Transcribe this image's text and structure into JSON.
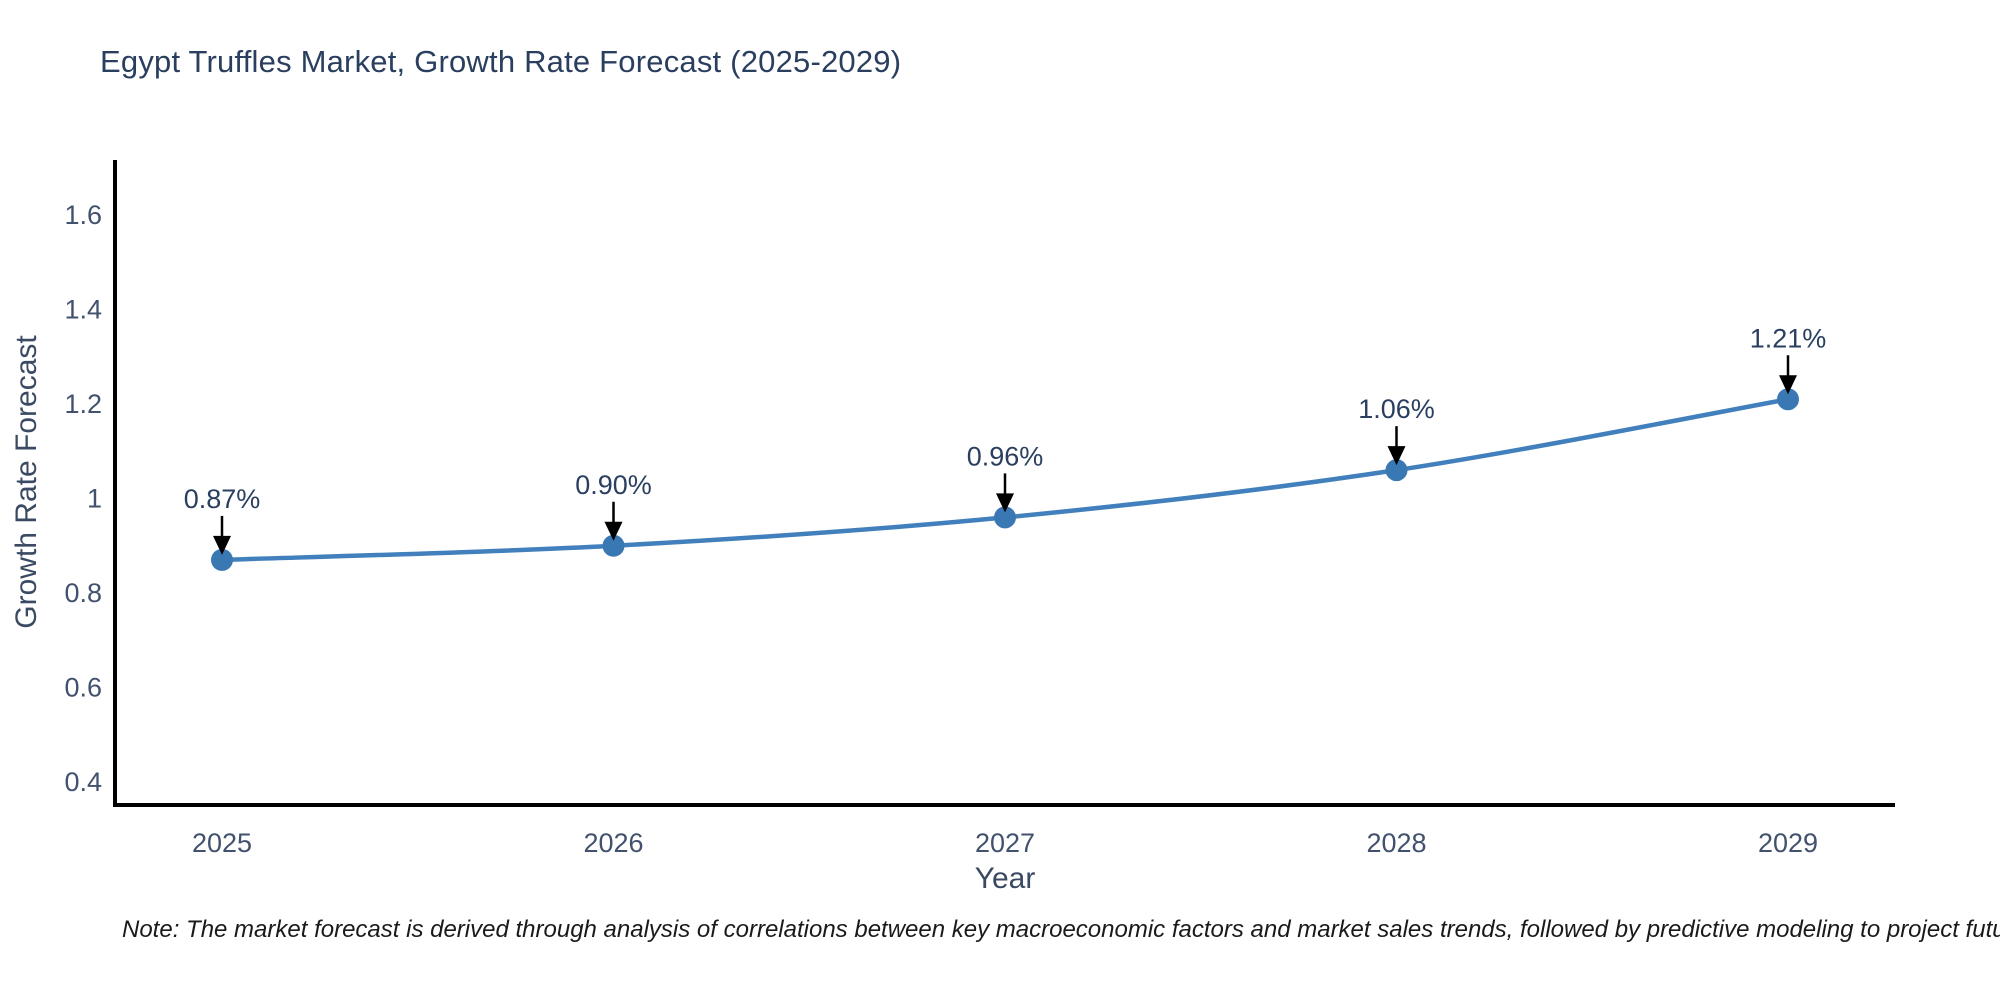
{
  "title": "Egypt Truffles Market, Growth Rate Forecast (2025-2029)",
  "note": "Note: The market forecast is derived through analysis of correlations between key macroeconomic factors and market sales trends, followed by predictive modeling to project future sales",
  "chart_data": {
    "type": "line",
    "x": [
      "2025",
      "2026",
      "2027",
      "2028",
      "2029"
    ],
    "series": [
      {
        "name": "Growth Rate Forecast",
        "values": [
          0.87,
          0.9,
          0.96,
          1.06,
          1.21
        ],
        "point_labels": [
          "0.87%",
          "0.90%",
          "0.96%",
          "1.06%",
          "1.21%"
        ]
      }
    ],
    "title": "Egypt Truffles Market, Growth Rate Forecast (2025-2029)",
    "xlabel": "Year",
    "ylabel": "Growth Rate Forecast",
    "ylim": [
      0.35,
      1.72
    ],
    "yticks": [
      {
        "v": 0.4,
        "label": "0.4"
      },
      {
        "v": 0.6,
        "label": "0.6"
      },
      {
        "v": 0.8,
        "label": "0.8"
      },
      {
        "v": 1.0,
        "label": "1"
      },
      {
        "v": 1.2,
        "label": "1.2"
      },
      {
        "v": 1.4,
        "label": "1.4"
      },
      {
        "v": 1.6,
        "label": "1.6"
      }
    ],
    "grid": false,
    "legend": "none",
    "colors": {
      "line": "#4180bc",
      "marker": "#3a78b4",
      "axis": "#000000",
      "tick_text": "#42516d",
      "axis_title_text": "#3b4a63",
      "annotation_text": "#2a3f5f",
      "annotation_arrow": "#000000",
      "title_text": "#2a3f5f",
      "background": "#ffffff"
    }
  }
}
